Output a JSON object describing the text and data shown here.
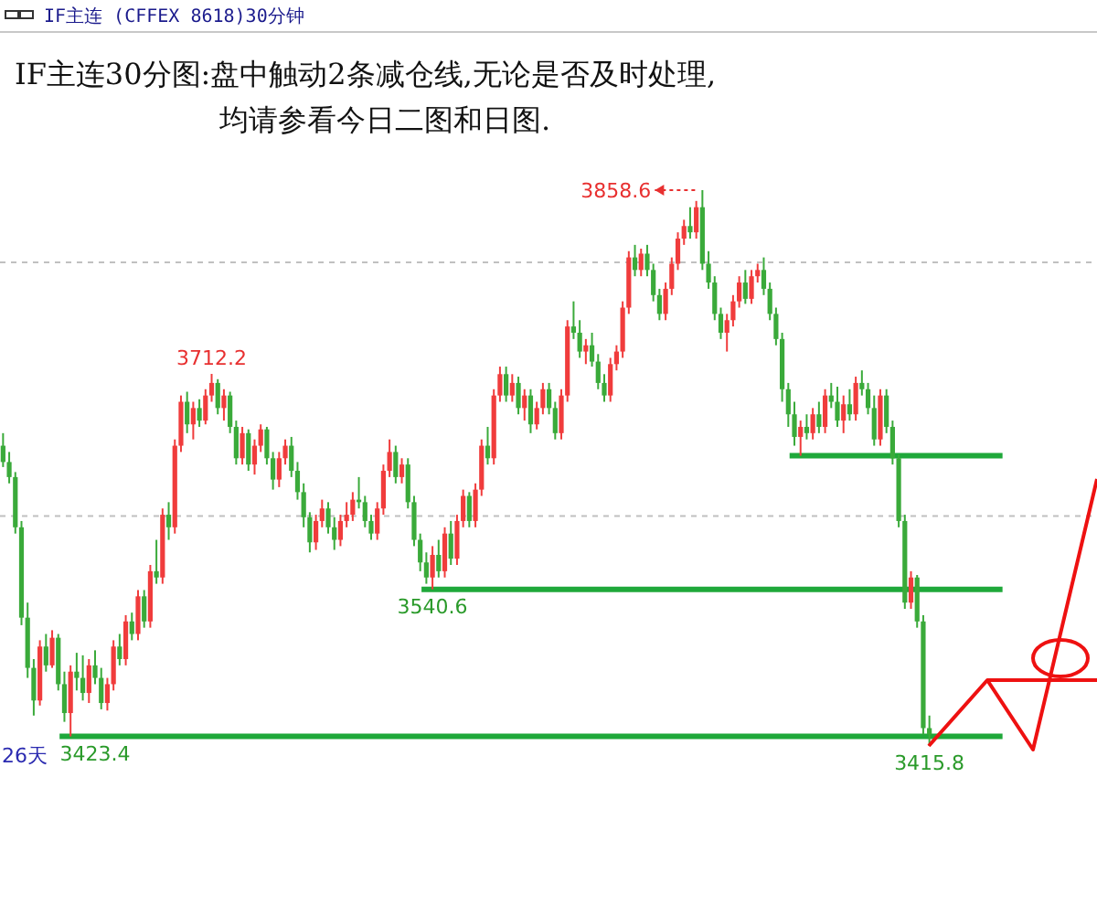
{
  "chart_data": {
    "type": "candlestick",
    "title": "IF主连30分图:盘中触动2条减仓线,无论是否及时处理,\n均请参看今日二图和日图.",
    "annotations": [
      "IF主连  (CFFEX 8618)30分钟",
      "26天",
      {
        "text": "3712.2",
        "y": 3712.2
      },
      "3858.6",
      {
        "text": "3540.6",
        "y": 3540.6
      },
      {
        "text": "3423.4",
        "y": 3423.4
      },
      {
        "text": "3415.8",
        "y": 3415.8
      }
    ],
    "categories": [
      null,
      null,
      null,
      null,
      null,
      null,
      null,
      null,
      null,
      null,
      null,
      null,
      null,
      null,
      null,
      null,
      null,
      null,
      null,
      null,
      null,
      null,
      null,
      null,
      null,
      null,
      null,
      null,
      null,
      null,
      null,
      null,
      null,
      null,
      null,
      null,
      null,
      null,
      null,
      null,
      null,
      null,
      null,
      null,
      null,
      null,
      null,
      null,
      null,
      null,
      null,
      null,
      null,
      null,
      null,
      null,
      null,
      null,
      null,
      null,
      null,
      null,
      null,
      null,
      null,
      null,
      null,
      null,
      null,
      null,
      null,
      null,
      null,
      null,
      null,
      null,
      null,
      null,
      null,
      null,
      null,
      null,
      null,
      null,
      null,
      null,
      null,
      null,
      null,
      null,
      null,
      null,
      null,
      null,
      null,
      null,
      null,
      null,
      null,
      null,
      null,
      null,
      null,
      null,
      null,
      null,
      null,
      null,
      null,
      null,
      null,
      null,
      null,
      null,
      null,
      null,
      null,
      null,
      null,
      null,
      null,
      null,
      null,
      null,
      null,
      null,
      null,
      null,
      null,
      null,
      null,
      null,
      null,
      null,
      null,
      null,
      null,
      null,
      null,
      null,
      null,
      null,
      null,
      null,
      null,
      null,
      null,
      null,
      null,
      null,
      null,
      null
    ],
    "ohlc": [
      [
        3655,
        3665,
        3638,
        3642
      ],
      [
        3642,
        3650,
        3625,
        3630
      ],
      [
        3630,
        3634,
        3585,
        3590
      ],
      [
        3590,
        3595,
        3512,
        3518
      ],
      [
        3518,
        3530,
        3470,
        3478
      ],
      [
        3478,
        3485,
        3440,
        3452
      ],
      [
        3452,
        3500,
        3448,
        3495
      ],
      [
        3495,
        3505,
        3475,
        3480
      ],
      [
        3480,
        3508,
        3478,
        3502
      ],
      [
        3502,
        3505,
        3460,
        3465
      ],
      [
        3465,
        3475,
        3435,
        3442
      ],
      [
        3442,
        3480,
        3423.4,
        3475
      ],
      [
        3475,
        3490,
        3460,
        3470
      ],
      [
        3470,
        3488,
        3452,
        3458
      ],
      [
        3458,
        3485,
        3450,
        3480
      ],
      [
        3480,
        3492,
        3465,
        3470
      ],
      [
        3470,
        3478,
        3445,
        3450
      ],
      [
        3450,
        3470,
        3444,
        3465
      ],
      [
        3465,
        3500,
        3460,
        3495
      ],
      [
        3495,
        3505,
        3480,
        3485
      ],
      [
        3485,
        3520,
        3480,
        3515
      ],
      [
        3515,
        3522,
        3500,
        3505
      ],
      [
        3505,
        3540,
        3500,
        3535
      ],
      [
        3535,
        3540,
        3510,
        3515
      ],
      [
        3515,
        3560,
        3510,
        3555
      ],
      [
        3555,
        3580,
        3545,
        3550
      ],
      [
        3550,
        3605,
        3545,
        3600
      ],
      [
        3600,
        3610,
        3580,
        3590
      ],
      [
        3590,
        3660,
        3585,
        3655
      ],
      [
        3655,
        3695,
        3650,
        3690
      ],
      [
        3690,
        3698,
        3665,
        3672
      ],
      [
        3672,
        3690,
        3660,
        3685
      ],
      [
        3685,
        3692,
        3670,
        3675
      ],
      [
        3675,
        3700,
        3672,
        3695
      ],
      [
        3695,
        3712.2,
        3690,
        3705
      ],
      [
        3705,
        3708,
        3680,
        3685
      ],
      [
        3685,
        3700,
        3675,
        3695
      ],
      [
        3695,
        3698,
        3665,
        3670
      ],
      [
        3670,
        3675,
        3640,
        3645
      ],
      [
        3645,
        3670,
        3640,
        3665
      ],
      [
        3665,
        3668,
        3635,
        3640
      ],
      [
        3640,
        3660,
        3632,
        3655
      ],
      [
        3655,
        3672,
        3650,
        3668
      ],
      [
        3668,
        3670,
        3640,
        3645
      ],
      [
        3645,
        3650,
        3620,
        3628
      ],
      [
        3628,
        3650,
        3622,
        3645
      ],
      [
        3645,
        3660,
        3640,
        3655
      ],
      [
        3655,
        3662,
        3630,
        3635
      ],
      [
        3635,
        3642,
        3612,
        3618
      ],
      [
        3618,
        3625,
        3590,
        3598
      ],
      [
        3598,
        3602,
        3570,
        3578
      ],
      [
        3578,
        3600,
        3572,
        3595
      ],
      [
        3595,
        3612,
        3590,
        3605
      ],
      [
        3605,
        3610,
        3585,
        3590
      ],
      [
        3590,
        3598,
        3572,
        3580
      ],
      [
        3580,
        3600,
        3575,
        3595
      ],
      [
        3595,
        3610,
        3590,
        3600
      ],
      [
        3600,
        3618,
        3595,
        3612
      ],
      [
        3612,
        3630,
        3605,
        3610
      ],
      [
        3610,
        3615,
        3590,
        3595
      ],
      [
        3595,
        3600,
        3580,
        3585
      ],
      [
        3585,
        3610,
        3580,
        3605
      ],
      [
        3605,
        3640,
        3600,
        3635
      ],
      [
        3635,
        3660,
        3630,
        3650
      ],
      [
        3650,
        3655,
        3625,
        3630
      ],
      [
        3630,
        3645,
        3625,
        3640
      ],
      [
        3640,
        3645,
        3605,
        3610
      ],
      [
        3610,
        3615,
        3575,
        3580
      ],
      [
        3580,
        3585,
        3555,
        3562
      ],
      [
        3562,
        3570,
        3545,
        3550
      ],
      [
        3550,
        3575,
        3540.6,
        3568
      ],
      [
        3568,
        3580,
        3550,
        3555
      ],
      [
        3555,
        3590,
        3550,
        3585
      ],
      [
        3585,
        3595,
        3560,
        3565
      ],
      [
        3565,
        3600,
        3560,
        3595
      ],
      [
        3595,
        3620,
        3590,
        3615
      ],
      [
        3615,
        3618,
        3590,
        3595
      ],
      [
        3595,
        3625,
        3590,
        3620
      ],
      [
        3620,
        3660,
        3615,
        3655
      ],
      [
        3655,
        3670,
        3640,
        3645
      ],
      [
        3645,
        3700,
        3640,
        3695
      ],
      [
        3695,
        3718,
        3690,
        3712
      ],
      [
        3712,
        3718,
        3690,
        3695
      ],
      [
        3695,
        3712,
        3690,
        3705
      ],
      [
        3705,
        3710,
        3680,
        3685
      ],
      [
        3685,
        3700,
        3675,
        3695
      ],
      [
        3695,
        3700,
        3665,
        3672
      ],
      [
        3672,
        3690,
        3668,
        3685
      ],
      [
        3685,
        3705,
        3680,
        3700
      ],
      [
        3700,
        3705,
        3680,
        3685
      ],
      [
        3685,
        3690,
        3660,
        3665
      ],
      [
        3665,
        3700,
        3660,
        3695
      ],
      [
        3695,
        3755,
        3690,
        3750
      ],
      [
        3750,
        3770,
        3740,
        3745
      ],
      [
        3745,
        3755,
        3725,
        3730
      ],
      [
        3730,
        3740,
        3720,
        3735
      ],
      [
        3735,
        3745,
        3718,
        3722
      ],
      [
        3722,
        3728,
        3700,
        3705
      ],
      [
        3705,
        3712,
        3690,
        3695
      ],
      [
        3695,
        3725,
        3690,
        3720
      ],
      [
        3720,
        3735,
        3715,
        3730
      ],
      [
        3730,
        3770,
        3725,
        3765
      ],
      [
        3765,
        3810,
        3760,
        3805
      ],
      [
        3805,
        3815,
        3790,
        3795
      ],
      [
        3795,
        3812,
        3790,
        3808
      ],
      [
        3808,
        3815,
        3790,
        3795
      ],
      [
        3795,
        3800,
        3770,
        3775
      ],
      [
        3775,
        3780,
        3755,
        3760
      ],
      [
        3760,
        3785,
        3755,
        3780
      ],
      [
        3780,
        3805,
        3775,
        3800
      ],
      [
        3800,
        3825,
        3795,
        3820
      ],
      [
        3820,
        3835,
        3815,
        3830
      ],
      [
        3830,
        3845,
        3820,
        3825
      ],
      [
        3825,
        3850,
        3820,
        3845
      ],
      [
        3845,
        3858.6,
        3795,
        3800
      ],
      [
        3800,
        3810,
        3780,
        3785
      ],
      [
        3785,
        3790,
        3755,
        3760
      ],
      [
        3760,
        3765,
        3740,
        3745
      ],
      [
        3745,
        3760,
        3730,
        3755
      ],
      [
        3755,
        3775,
        3750,
        3770
      ],
      [
        3770,
        3790,
        3765,
        3785
      ],
      [
        3785,
        3795,
        3768,
        3772
      ],
      [
        3772,
        3795,
        3768,
        3790
      ],
      [
        3790,
        3800,
        3785,
        3795
      ],
      [
        3795,
        3805,
        3775,
        3780
      ],
      [
        3780,
        3785,
        3755,
        3760
      ],
      [
        3760,
        3765,
        3735,
        3740
      ],
      [
        3740,
        3745,
        3690,
        3700
      ],
      [
        3700,
        3705,
        3670,
        3680
      ],
      [
        3680,
        3690,
        3655,
        3662
      ],
      [
        3662,
        3675,
        3647,
        3670
      ],
      [
        3670,
        3680,
        3660,
        3665
      ],
      [
        3665,
        3685,
        3660,
        3680
      ],
      [
        3680,
        3690,
        3665,
        3670
      ],
      [
        3670,
        3700,
        3665,
        3695
      ],
      [
        3695,
        3705,
        3685,
        3690
      ],
      [
        3690,
        3702,
        3670,
        3675
      ],
      [
        3675,
        3695,
        3665,
        3688
      ],
      [
        3688,
        3700,
        3675,
        3680
      ],
      [
        3680,
        3710,
        3675,
        3705
      ],
      [
        3705,
        3715,
        3695,
        3700
      ],
      [
        3700,
        3705,
        3680,
        3685
      ],
      [
        3685,
        3695,
        3655,
        3660
      ],
      [
        3660,
        3700,
        3655,
        3695
      ],
      [
        3695,
        3700,
        3665,
        3670
      ],
      [
        3670,
        3675,
        3640,
        3645
      ],
      [
        3645,
        3648,
        3590,
        3595
      ],
      [
        3595,
        3600,
        3525,
        3530
      ],
      [
        3530,
        3555,
        3525,
        3550
      ],
      [
        3550,
        3552,
        3510,
        3515
      ],
      [
        3515,
        3520,
        3425,
        3430
      ],
      [
        3430,
        3440,
        3415.8,
        3425
      ]
    ],
    "colors": [
      "#3aaa3a",
      "#3aaa3a",
      "#3aaa3a",
      "#3aaa3a",
      "#3aaa3a",
      "#3aaa3a",
      "#f03c3c",
      "#3aaa3a",
      "#f03c3c",
      "#3aaa3a",
      "#3aaa3a",
      "#f03c3c",
      "#3aaa3a",
      "#3aaa3a",
      "#f03c3c",
      "#3aaa3a",
      "#3aaa3a",
      "#f03c3c",
      "#f03c3c",
      "#3aaa3a",
      "#f03c3c",
      "#3aaa3a",
      "#f03c3c",
      "#3aaa3a",
      "#f03c3c",
      "#3aaa3a",
      "#f03c3c",
      "#3aaa3a",
      "#f03c3c",
      "#f03c3c",
      "#3aaa3a",
      "#f03c3c",
      "#3aaa3a",
      "#f03c3c",
      "#f03c3c",
      "#3aaa3a",
      "#f03c3c",
      "#3aaa3a",
      "#3aaa3a",
      "#f03c3c",
      "#3aaa3a",
      "#f03c3c",
      "#f03c3c",
      "#3aaa3a",
      "#3aaa3a",
      "#f03c3c",
      "#f03c3c",
      "#3aaa3a",
      "#3aaa3a",
      "#3aaa3a",
      "#3aaa3a",
      "#f03c3c",
      "#f03c3c",
      "#3aaa3a",
      "#3aaa3a",
      "#f03c3c",
      "#f03c3c",
      "#f03c3c",
      "#3aaa3a",
      "#3aaa3a",
      "#3aaa3a",
      "#f03c3c",
      "#f03c3c",
      "#f03c3c",
      "#3aaa3a",
      "#f03c3c",
      "#3aaa3a",
      "#3aaa3a",
      "#3aaa3a",
      "#3aaa3a",
      "#f03c3c",
      "#3aaa3a",
      "#f03c3c",
      "#3aaa3a",
      "#f03c3c",
      "#f03c3c",
      "#3aaa3a",
      "#f03c3c",
      "#f03c3c",
      "#3aaa3a",
      "#f03c3c",
      "#f03c3c",
      "#3aaa3a",
      "#f03c3c",
      "#3aaa3a",
      "#f03c3c",
      "#3aaa3a",
      "#f03c3c",
      "#f03c3c",
      "#3aaa3a",
      "#3aaa3a",
      "#f03c3c",
      "#f03c3c",
      "#3aaa3a",
      "#3aaa3a",
      "#f03c3c",
      "#3aaa3a",
      "#3aaa3a",
      "#3aaa3a",
      "#f03c3c",
      "#f03c3c",
      "#f03c3c",
      "#f03c3c",
      "#3aaa3a",
      "#f03c3c",
      "#3aaa3a",
      "#3aaa3a",
      "#3aaa3a",
      "#f03c3c",
      "#f03c3c",
      "#f03c3c",
      "#f03c3c",
      "#3aaa3a",
      "#f03c3c",
      "#3aaa3a",
      "#3aaa3a",
      "#3aaa3a",
      "#3aaa3a",
      "#f03c3c",
      "#f03c3c",
      "#f03c3c",
      "#3aaa3a",
      "#f03c3c",
      "#f03c3c",
      "#3aaa3a",
      "#3aaa3a",
      "#3aaa3a",
      "#3aaa3a",
      "#3aaa3a",
      "#3aaa3a",
      "#f03c3c",
      "#3aaa3a",
      "#f03c3c",
      "#3aaa3a",
      "#f03c3c",
      "#3aaa3a",
      "#3aaa3a",
      "#f03c3c",
      "#3aaa3a",
      "#f03c3c",
      "#3aaa3a",
      "#3aaa3a",
      "#3aaa3a",
      "#f03c3c",
      "#3aaa3a",
      "#3aaa3a",
      "#3aaa3a",
      "#3aaa3a",
      "#f03c3c",
      "#3aaa3a",
      "#3aaa3a",
      "#3aaa3a"
    ],
    "yticks": [
      {
        "value": 3801,
        "label": null
      },
      {
        "value": 3599,
        "label": null
      }
    ],
    "grid": "y",
    "ref_lines": [
      {
        "axis": "y",
        "value": 3647,
        "label": null,
        "color": "#1fa83a"
      },
      {
        "axis": "y",
        "value": 3540.6,
        "label": null,
        "color": "#1fa83a"
      },
      {
        "axis": "y",
        "value": 3423.4,
        "label": null,
        "color": "#1fa83a"
      }
    ]
  }
}
